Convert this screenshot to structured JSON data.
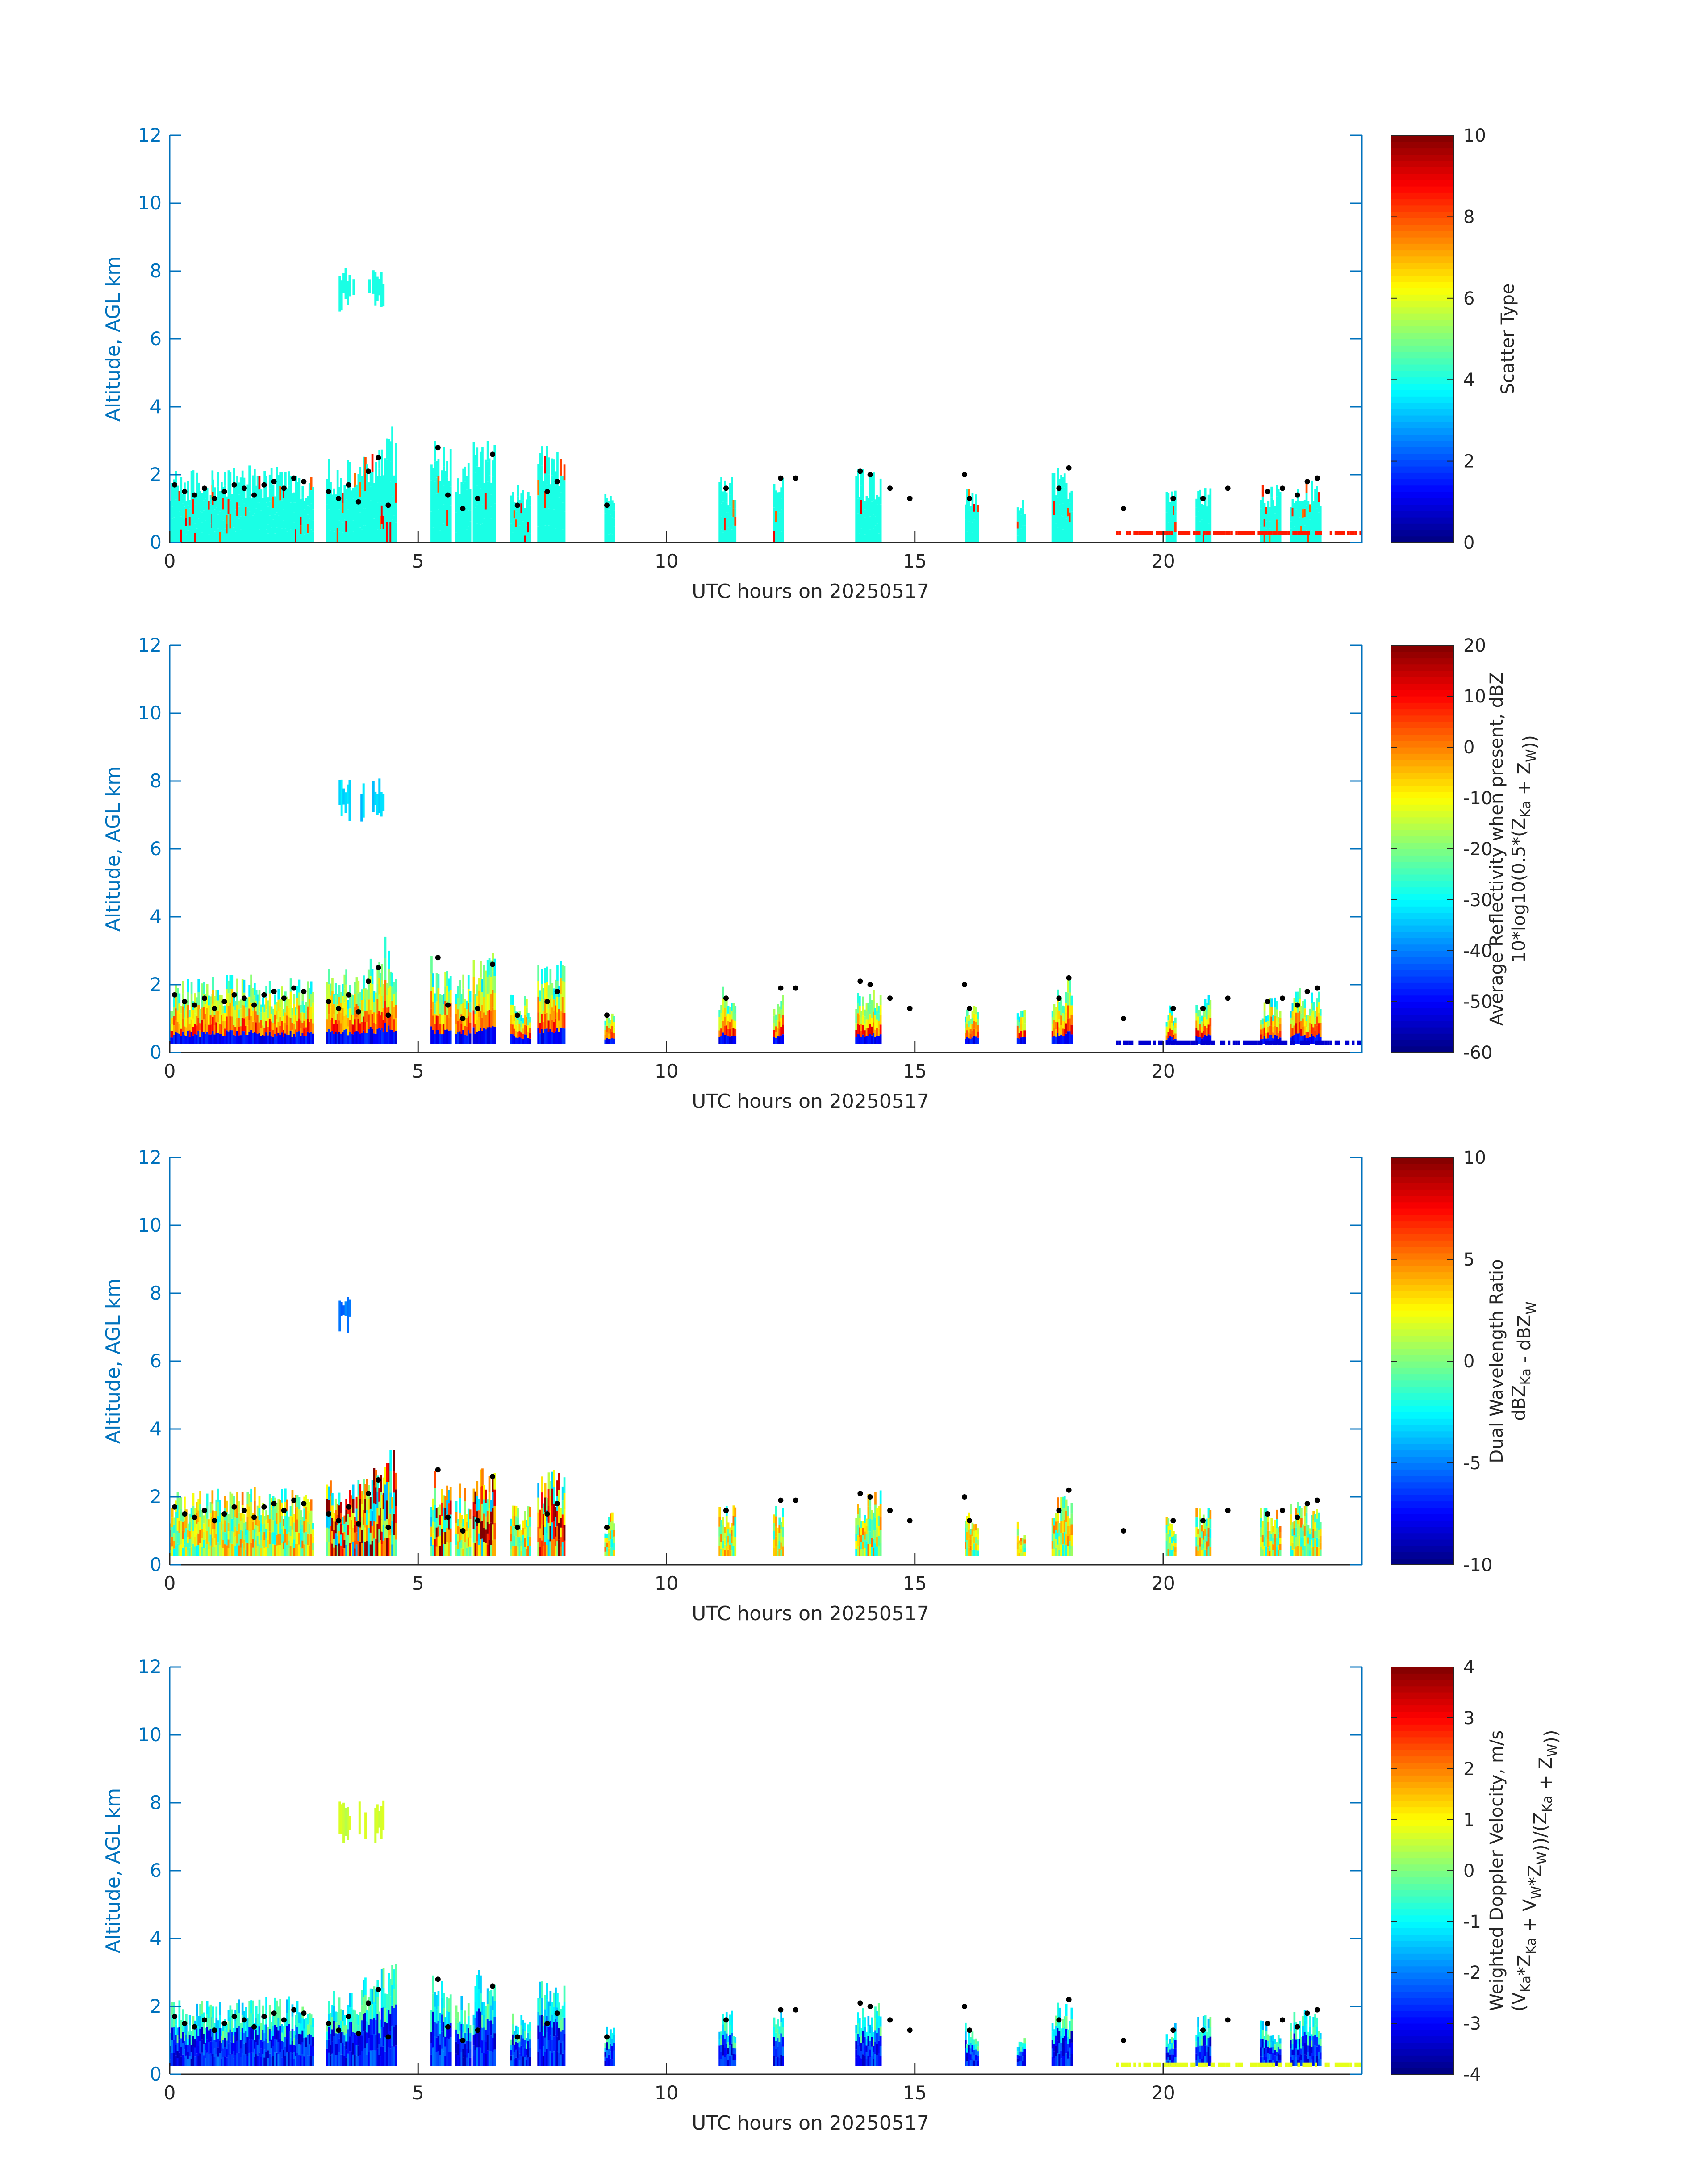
{
  "chart_data": [
    {
      "type": "heatmap",
      "panel": 1,
      "xlabel": "UTC hours on 20250517",
      "ylabel": "Altitude, AGL km",
      "xlim": [
        0,
        24
      ],
      "ylim": [
        0,
        12
      ],
      "xticks": [
        0,
        5,
        10,
        15,
        20
      ],
      "yticks": [
        0,
        2,
        4,
        6,
        8,
        10,
        12
      ],
      "colorbar": {
        "label_lines": [
          "Scatter Type"
        ],
        "range": [
          0,
          10
        ],
        "ticks": [
          0,
          2,
          4,
          6,
          8,
          10
        ],
        "colormap": "jet"
      },
      "mode": "scatter_type"
    },
    {
      "type": "heatmap",
      "panel": 2,
      "xlabel": "UTC hours on 20250517",
      "ylabel": "Altitude, AGL km",
      "xlim": [
        0,
        24
      ],
      "ylim": [
        0,
        12
      ],
      "xticks": [
        0,
        5,
        10,
        15,
        20
      ],
      "yticks": [
        0,
        2,
        4,
        6,
        8,
        10,
        12
      ],
      "colorbar": {
        "label_lines": [
          "Average Reflectivity when present, dBZ",
          "10*log10(0.5*(Z_Ka + Z_W))"
        ],
        "range": [
          -60,
          20
        ],
        "ticks": [
          -60,
          -50,
          -40,
          -30,
          -20,
          -10,
          0,
          10,
          20
        ],
        "colormap": "jet"
      },
      "mode": "reflectivity"
    },
    {
      "type": "heatmap",
      "panel": 3,
      "xlabel": "UTC hours on 20250517",
      "ylabel": "Altitude, AGL km",
      "xlim": [
        0,
        24
      ],
      "ylim": [
        0,
        12
      ],
      "xticks": [
        0,
        5,
        10,
        15,
        20
      ],
      "yticks": [
        0,
        2,
        4,
        6,
        8,
        10,
        12
      ],
      "colorbar": {
        "label_lines": [
          "Dual Wavelength Ratio",
          "dBZ_Ka - dBZ_W"
        ],
        "range": [
          -10,
          10
        ],
        "ticks": [
          -10,
          -5,
          0,
          5,
          10
        ],
        "colormap": "jet"
      },
      "mode": "dwr"
    },
    {
      "type": "heatmap",
      "panel": 4,
      "xlabel": "UTC hours on 20250517",
      "ylabel": "Altitude, AGL km",
      "xlim": [
        0,
        24
      ],
      "ylim": [
        0,
        12
      ],
      "xticks": [
        0,
        5,
        10,
        15,
        20
      ],
      "yticks": [
        0,
        2,
        4,
        6,
        8,
        10,
        12
      ],
      "colorbar": {
        "label_lines": [
          "Weighted Doppler Velocity, m/s",
          "(V_Ka*Z_Ka + V_W*Z_W))/(Z_Ka + Z_W))"
        ],
        "range": [
          -4,
          4
        ],
        "ticks": [
          -4,
          -3,
          -2,
          -1,
          0,
          1,
          2,
          3,
          4
        ],
        "colormap": "jet"
      },
      "mode": "velocity"
    }
  ],
  "cloud_columns": [
    {
      "t0": 0.0,
      "t1": 0.85,
      "top": 2.2
    },
    {
      "t0": 0.85,
      "t1": 1.75,
      "top": 2.3
    },
    {
      "t0": 1.75,
      "t1": 2.55,
      "top": 2.3
    },
    {
      "t0": 2.55,
      "t1": 2.9,
      "top": 2.2
    },
    {
      "t0": 3.15,
      "t1": 3.85,
      "top": 2.5
    },
    {
      "t0": 3.85,
      "t1": 4.25,
      "top": 2.9
    },
    {
      "t0": 4.25,
      "t1": 4.55,
      "top": 3.5
    },
    {
      "t0": 5.25,
      "t1": 5.65,
      "top": 3.0
    },
    {
      "t0": 5.75,
      "t1": 6.05,
      "top": 2.4
    },
    {
      "t0": 6.1,
      "t1": 6.55,
      "top": 3.1
    },
    {
      "t0": 6.85,
      "t1": 7.25,
      "top": 1.8
    },
    {
      "t0": 7.4,
      "t1": 7.95,
      "top": 2.9
    },
    {
      "t0": 8.75,
      "t1": 8.95,
      "top": 1.6
    },
    {
      "t0": 11.05,
      "t1": 11.4,
      "top": 2.0
    },
    {
      "t0": 12.15,
      "t1": 12.35,
      "top": 1.9
    },
    {
      "t0": 13.8,
      "t1": 14.3,
      "top": 2.2
    },
    {
      "t0": 16.0,
      "t1": 16.25,
      "top": 1.6
    },
    {
      "t0": 17.05,
      "t1": 17.2,
      "top": 1.3
    },
    {
      "t0": 17.75,
      "t1": 18.15,
      "top": 2.2
    },
    {
      "t0": 20.05,
      "t1": 20.25,
      "top": 1.6
    },
    {
      "t0": 20.65,
      "t1": 20.95,
      "top": 1.8
    },
    {
      "t0": 21.95,
      "t1": 22.35,
      "top": 1.7
    },
    {
      "t0": 22.55,
      "t1": 23.15,
      "top": 1.9
    }
  ],
  "elevated_patch": {
    "t0": 3.4,
    "t1": 4.3,
    "bottom": 6.8,
    "top": 8.1
  },
  "cloud_base_points": [
    {
      "t": 0.1,
      "z": 1.7
    },
    {
      "t": 0.3,
      "z": 1.5
    },
    {
      "t": 0.5,
      "z": 1.4
    },
    {
      "t": 0.7,
      "z": 1.6
    },
    {
      "t": 0.9,
      "z": 1.3
    },
    {
      "t": 1.1,
      "z": 1.5
    },
    {
      "t": 1.3,
      "z": 1.7
    },
    {
      "t": 1.5,
      "z": 1.6
    },
    {
      "t": 1.7,
      "z": 1.4
    },
    {
      "t": 1.9,
      "z": 1.7
    },
    {
      "t": 2.1,
      "z": 1.8
    },
    {
      "t": 2.3,
      "z": 1.6
    },
    {
      "t": 2.5,
      "z": 1.9
    },
    {
      "t": 2.7,
      "z": 1.8
    },
    {
      "t": 3.2,
      "z": 1.5
    },
    {
      "t": 3.4,
      "z": 1.3
    },
    {
      "t": 3.6,
      "z": 1.7
    },
    {
      "t": 3.8,
      "z": 1.2
    },
    {
      "t": 4.0,
      "z": 2.1
    },
    {
      "t": 4.2,
      "z": 2.5
    },
    {
      "t": 4.4,
      "z": 1.1
    },
    {
      "t": 5.4,
      "z": 2.8
    },
    {
      "t": 5.6,
      "z": 1.4
    },
    {
      "t": 5.9,
      "z": 1.0
    },
    {
      "t": 6.2,
      "z": 1.3
    },
    {
      "t": 6.5,
      "z": 2.6
    },
    {
      "t": 7.0,
      "z": 1.1
    },
    {
      "t": 7.6,
      "z": 1.5
    },
    {
      "t": 7.8,
      "z": 1.8
    },
    {
      "t": 8.8,
      "z": 1.1
    },
    {
      "t": 11.2,
      "z": 1.6
    },
    {
      "t": 12.3,
      "z": 1.9
    },
    {
      "t": 12.6,
      "z": 1.9
    },
    {
      "t": 13.9,
      "z": 2.1
    },
    {
      "t": 14.1,
      "z": 2.0
    },
    {
      "t": 14.5,
      "z": 1.6
    },
    {
      "t": 14.9,
      "z": 1.3
    },
    {
      "t": 16.1,
      "z": 1.3
    },
    {
      "t": 16.0,
      "z": 2.0
    },
    {
      "t": 17.9,
      "z": 1.6
    },
    {
      "t": 18.1,
      "z": 2.2
    },
    {
      "t": 19.2,
      "z": 1.0
    },
    {
      "t": 20.2,
      "z": 1.3
    },
    {
      "t": 20.8,
      "z": 1.3
    },
    {
      "t": 21.3,
      "z": 1.6
    },
    {
      "t": 22.1,
      "z": 1.5
    },
    {
      "t": 22.4,
      "z": 1.6
    },
    {
      "t": 22.7,
      "z": 1.4
    },
    {
      "t": 22.9,
      "z": 1.8
    },
    {
      "t": 23.1,
      "z": 1.9
    }
  ],
  "surface_clutter": [
    {
      "t0": 19.0,
      "t1": 24.0,
      "z": 0.28
    }
  ],
  "colors": {
    "axis": "#0072bd",
    "text": "#262626",
    "background": "#ffffff",
    "points": "#000000"
  }
}
